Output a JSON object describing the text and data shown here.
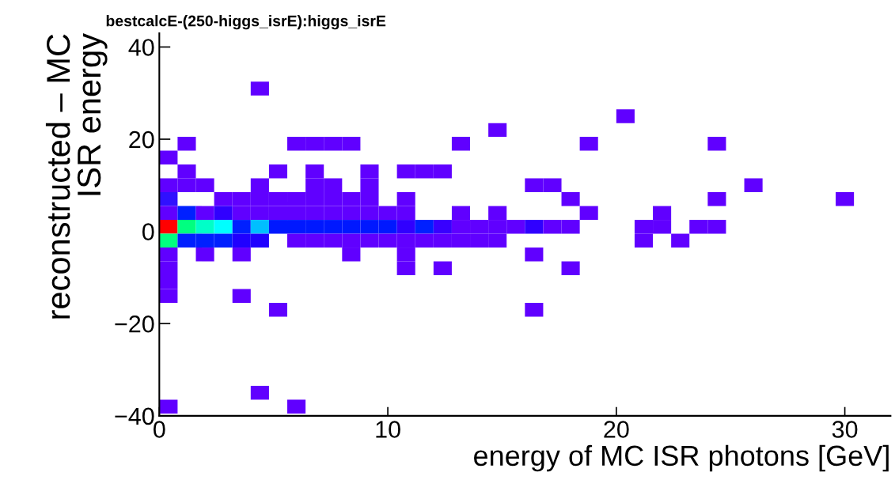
{
  "chart_data": {
    "type": "scatter",
    "title": "bestcalcE-(250-higgs_isrE):higgs_isrE",
    "xlabel": "energy of MC ISR photons [GeV]",
    "ylabel": "reconstructed – MC\nISR energy",
    "xlim": [
      0,
      32
    ],
    "ylim": [
      -40,
      43
    ],
    "xticks": [
      0,
      10,
      20,
      30
    ],
    "yticks": [
      {
        "value": -40,
        "label": "−40"
      },
      {
        "value": -20,
        "label": "−20"
      },
      0,
      20,
      40
    ],
    "marker": "square",
    "grid": false,
    "series": [
      {
        "x": [
          4.4,
          1.2,
          6.0,
          6.8,
          7.6,
          8.4,
          13.2,
          18.8,
          24.4,
          14.8,
          20.4,
          0.4,
          1.2,
          5.2,
          6.8,
          9.2,
          10.8,
          11.6,
          12.4,
          0.4,
          1.2,
          2.0,
          4.4,
          6.8,
          7.6,
          9.2,
          16.4,
          17.2,
          26.0,
          0.4,
          2.8,
          3.6,
          4.4,
          5.2,
          6.0,
          6.8,
          7.6,
          8.4,
          9.2,
          10.8,
          18.0,
          24.4,
          30.0,
          0.4,
          1.2,
          2.0,
          2.8,
          3.6,
          4.4,
          5.2,
          6.0,
          6.8,
          7.6,
          8.4,
          9.2,
          10.0,
          10.8,
          13.2,
          14.8,
          18.8,
          22.0,
          0.4,
          1.2,
          2.0,
          2.8,
          3.6,
          4.4,
          5.2,
          6.0,
          6.8,
          7.6,
          8.4,
          9.2,
          10.0,
          10.8,
          11.6,
          12.4,
          13.2,
          14.0,
          14.8,
          15.6,
          16.4,
          17.2,
          18.0,
          21.2,
          22.0,
          23.6,
          24.4,
          0.4,
          1.2,
          2.0,
          2.8,
          3.6,
          4.4,
          6.0,
          6.8,
          7.6,
          8.4,
          9.2,
          10.0,
          10.8,
          11.6,
          12.4,
          13.2,
          14.0,
          14.8,
          21.2,
          22.8,
          0.4,
          2.0,
          3.6,
          8.4,
          10.8,
          16.4,
          0.4,
          10.8,
          12.4,
          18.0,
          0.4,
          0.4,
          3.6,
          5.2,
          16.4,
          4.4,
          0.4,
          6.0
        ],
        "values": [
          31,
          19,
          19,
          19,
          19,
          19,
          19,
          19,
          19,
          22,
          25,
          16,
          13,
          13,
          13,
          13,
          13,
          13,
          13,
          10,
          10,
          10,
          10,
          10,
          10,
          10,
          10,
          10,
          10,
          7,
          7,
          7,
          7,
          7,
          7,
          7,
          7,
          7,
          7,
          7,
          7,
          7,
          7,
          4,
          4,
          4,
          4,
          4,
          4,
          4,
          4,
          4,
          4,
          4,
          4,
          4,
          4,
          4,
          4,
          4,
          4,
          1,
          1,
          1,
          1,
          1,
          1,
          1,
          1,
          1,
          1,
          1,
          1,
          1,
          1,
          1,
          1,
          1,
          1,
          1,
          1,
          1,
          1,
          1,
          1,
          1,
          1,
          1,
          -2,
          -2,
          -2,
          -2,
          -2,
          -2,
          -2,
          -2,
          -2,
          -2,
          -2,
          -2,
          -2,
          -2,
          -2,
          -2,
          -2,
          -2,
          -2,
          -2,
          -5,
          -5,
          -5,
          -5,
          -5,
          -5,
          -8,
          -8,
          -8,
          -8,
          -11,
          -14,
          -14,
          -17,
          -17,
          -35,
          -38,
          -38
        ],
        "colors": [
          "#6000ff",
          "#6000ff",
          "#6000ff",
          "#6000ff",
          "#6000ff",
          "#6000ff",
          "#6000ff",
          "#6000ff",
          "#6000ff",
          "#6000ff",
          "#6000ff",
          "#6000ff",
          "#6000ff",
          "#6000ff",
          "#6000ff",
          "#6000ff",
          "#6000ff",
          "#6000ff",
          "#6000ff",
          "#6000ff",
          "#6000ff",
          "#6000ff",
          "#6000ff",
          "#6000ff",
          "#6000ff",
          "#6000ff",
          "#6000ff",
          "#6000ff",
          "#6000ff",
          "#3010ff",
          "#6000ff",
          "#6000ff",
          "#6000ff",
          "#6000ff",
          "#6000ff",
          "#6000ff",
          "#6000ff",
          "#6000ff",
          "#6000ff",
          "#6000ff",
          "#6000ff",
          "#6000ff",
          "#6000ff",
          "#6000ff",
          "#0020ff",
          "#6000ff",
          "#3000ff",
          "#6000ff",
          "#6000ff",
          "#6000ff",
          "#6000ff",
          "#6000ff",
          "#6000ff",
          "#6000ff",
          "#6000ff",
          "#6000ff",
          "#6000ff",
          "#6000ff",
          "#6000ff",
          "#6000ff",
          "#6000ff",
          "#ff0000",
          "#00ff80",
          "#00ffc8",
          "#00ffff",
          "#0020ff",
          "#00bfff",
          "#0018ff",
          "#0018ff",
          "#0018ff",
          "#0018ff",
          "#0018ff",
          "#0018ff",
          "#0018ff",
          "#3000ff",
          "#0020ff",
          "#3800ff",
          "#6000ff",
          "#6000ff",
          "#6000ff",
          "#6000ff",
          "#3000ff",
          "#6000ff",
          "#6000ff",
          "#6000ff",
          "#6000ff",
          "#6000ff",
          "#6000ff",
          "#00ff80",
          "#0020ff",
          "#0020ff",
          "#0020ff",
          "#2000ff",
          "#2000ff",
          "#6000ff",
          "#6000ff",
          "#6000ff",
          "#6000ff",
          "#6000ff",
          "#6000ff",
          "#6000ff",
          "#6000ff",
          "#6000ff",
          "#6000ff",
          "#6000ff",
          "#6000ff",
          "#6000ff",
          "#6000ff",
          "#6000ff",
          "#6000ff",
          "#6000ff",
          "#6000ff",
          "#6000ff",
          "#6000ff",
          "#6000ff",
          "#6000ff",
          "#6000ff",
          "#6000ff",
          "#6000ff",
          "#6000ff",
          "#6000ff",
          "#6000ff",
          "#6000ff",
          "#6000ff",
          "#6000ff",
          "#6000ff"
        ]
      }
    ]
  }
}
